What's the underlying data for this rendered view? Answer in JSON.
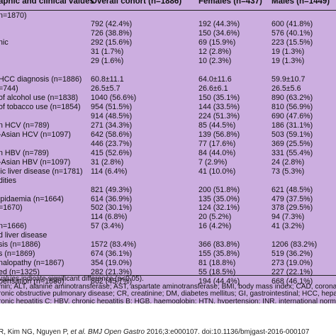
{
  "header": {
    "col0": "aphic and clinical values",
    "col1": "Overall cohort (n=1886)",
    "col2": "Females (n=437)",
    "col3": "Males (n=1449)"
  },
  "rows": [
    {
      "label": "n=1870)",
      "overall": "",
      "females": "",
      "males": ""
    },
    {
      "label": "",
      "overall": "792 (42.4%)",
      "females": "192 (44.3%)",
      "males": "600 (41.8%)"
    },
    {
      "label": "",
      "overall": "726 (38.8%)",
      "females": "150 (34.6%)",
      "males": "576 (40.1%)"
    },
    {
      "label": "nic",
      "overall": "292 (15.6%)",
      "females": "69 (15.9%)",
      "males": "223 (15.5%)"
    },
    {
      "label": "",
      "overall": "31 (1.7%)",
      "females": "12 (2.8%)",
      "males": "19 (1.3%)"
    },
    {
      "label": "",
      "overall": "29 (1.6%)",
      "females": "10 (2.3%)",
      "males": "19 (1.3%)"
    },
    {
      "label": "",
      "overall": "",
      "females": "",
      "males": ""
    },
    {
      "label": "HCC diagnosis (n=1886)",
      "overall": "60.8±11.1",
      "females": "64.0±11.6",
      "males": "59.9±10.7"
    },
    {
      "label": "=744)",
      "overall": "26.5±5.7",
      "females": "26.6±6.1",
      "males": "26.5±5.6"
    },
    {
      "label": "of alcohol use (n=1838)",
      "overall": "1040 (56.6%)",
      "females": "150 (35.1%)",
      "males": "890 (63.2%)"
    },
    {
      "label": "of tobacco use (n=1854)",
      "overall": "954 (51.5%)",
      "females": "144 (33.5%)",
      "males": "810 (56.9%)"
    },
    {
      "label": "",
      "overall": "914 (48.5%)",
      "females": "224 (51.3%)",
      "males": "690 (47.6%)"
    },
    {
      "label": "n HCV (n=789)",
      "overall": "271 (34.3%)",
      "females": "85 (44.5%)",
      "males": "186 (31.1%)"
    },
    {
      "label": "-Asian HCV (n=1097)",
      "overall": "642 (58.6%)",
      "females": "139 (56.8%)",
      "males": "503 (59.1%)"
    },
    {
      "label": "",
      "overall": "446 (23.7%)",
      "females": "77 (17.6%)",
      "males": "369 (25.5%)"
    },
    {
      "label": "n HBV (n=789)",
      "overall": "415 (52.6%)",
      "females": "84 (44.0%)",
      "males": "331 (55.4%)"
    },
    {
      "label": "-Asian HBV (n=1097)",
      "overall": "31 (2.8%)",
      "females": "7 (2.9%)",
      "males": "24 (2.8%)"
    },
    {
      "label": "lic liver disease (n=1781)",
      "overall": "114 (6.4%)",
      "females": "41 (10.0%)",
      "males": "73 (5.3%)"
    },
    {
      "label": "dities",
      "overall": "",
      "females": "",
      "males": ""
    },
    {
      "label": "",
      "overall": "821 (49.3%)",
      "females": "200 (51.8%)",
      "males": "621 (48.5%)"
    },
    {
      "label": "ipidaemia (n=1664)",
      "overall": "614 (36.9%)",
      "females": "135 (35.0%)",
      "males": "479 (37.5%)"
    },
    {
      "label": "=1670)",
      "overall": "502 (30.1%)",
      "females": "124 (32.1%)",
      "males": "378 (29.5%)"
    },
    {
      "label": "",
      "overall": "114 (6.8%)",
      "females": "20 (5.2%)",
      "males": "94 (7.3%)"
    },
    {
      "label": "n=1666)",
      "overall": "57 (3.4%)",
      "females": "16 (4.2%)",
      "males": "41 (3.2%)"
    },
    {
      "label": "d liver disease",
      "overall": "",
      "females": "",
      "males": ""
    },
    {
      "label": "sis (n=1886)",
      "overall": "1572 (83.4%)",
      "females": "366 (83.8%)",
      "males": "1206 (83.2%)"
    },
    {
      "label": "s (n=1869)",
      "overall": "674 (36.1%)",
      "females": "155 (35.8%)",
      "males": "519 (36.2%)"
    },
    {
      "label": "nalopathy (n=1867)",
      "overall": "354 (19.0%)",
      "females": "81 (18.8%)",
      "males": "273 (19.0%)"
    },
    {
      "label": "ed (n=1325)",
      "overall": "282 (21.3%)",
      "females": "55 (18.5%)",
      "males": "227 (22.1%)"
    },
    {
      "label": "pensation (n=1886)",
      "overall": "862 (45.7%)",
      "females": "194 (44.4%)",
      "males": "668 (46.1%)"
    }
  ],
  "notes": [
    "values indicate significant difference (p<0.05).",
    "min; ALT, alanine aminotransferase; AST, aspartate aminotransferase; BMI, body mass index; CAD, coronary artery dise",
    "ronic obstructive pulmonary disease; CR, creatinine; DM, diabetes mellitus; GI, gastrointestinal; HCC, hepatocellular carc",
    "ronic hepatitis C; HBV, chronic hepatitis B; HGB, haemoglobin; HTN, hypertension; INR, international normalised ratio; PL",
    "ulosis."
  ],
  "citation": {
    "prefix": "R, Kim NG, Nguyen P, ",
    "etal": "et al",
    "journal": ". BMJ Open Gastro",
    "rest": " 2016;3:e000107. doi:10.1136/bmjgast-2016-000107"
  }
}
